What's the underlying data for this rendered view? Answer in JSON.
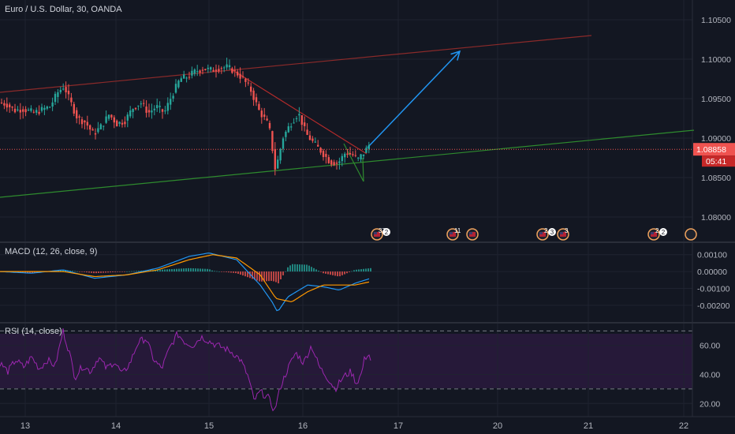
{
  "chart_data": {
    "type": "line",
    "symbol_header": "Euro / U.S. Dollar, 30, OANDA",
    "x_tick_labels": [
      "13",
      "14",
      "15",
      "16",
      "17",
      "20",
      "21",
      "22"
    ],
    "price_panel": {
      "y_tick_labels": [
        "1.10500",
        "1.10000",
        "1.09500",
        "1.09000",
        "1.08500",
        "1.08000"
      ],
      "y_ticks": [
        1.105,
        1.1,
        1.095,
        1.09,
        1.085,
        1.08
      ],
      "ylim": [
        1.0775,
        1.1075
      ],
      "last_price": 1.08858,
      "last_price_label": "1.08858",
      "countdown_label": "05:41",
      "candle_colors": {
        "up": "#26a69a",
        "down": "#ef5350"
      },
      "price_path": [
        [
          0,
          1.0945
        ],
        [
          10,
          1.0943
        ],
        [
          20,
          1.0935
        ],
        [
          30,
          1.0937
        ],
        [
          45,
          1.0932
        ],
        [
          55,
          1.0936
        ],
        [
          65,
          1.094
        ],
        [
          75,
          1.0958
        ],
        [
          83,
          1.0966
        ],
        [
          90,
          1.0948
        ],
        [
          100,
          1.0925
        ],
        [
          110,
          1.092
        ],
        [
          120,
          1.0905
        ],
        [
          130,
          1.0915
        ],
        [
          140,
          1.093
        ],
        [
          150,
          1.0918
        ],
        [
          160,
          1.0922
        ],
        [
          170,
          1.0938
        ],
        [
          180,
          1.0945
        ],
        [
          190,
          1.0932
        ],
        [
          200,
          1.094
        ],
        [
          210,
          1.0932
        ],
        [
          220,
          1.0955
        ],
        [
          230,
          1.0975
        ],
        [
          240,
          1.0978
        ],
        [
          250,
          1.0985
        ],
        [
          260,
          1.0988
        ],
        [
          270,
          1.0986
        ],
        [
          280,
          1.0989
        ],
        [
          290,
          1.099
        ],
        [
          300,
          1.0984
        ],
        [
          310,
          1.0975
        ],
        [
          320,
          1.096
        ],
        [
          330,
          1.0935
        ],
        [
          340,
          1.092
        ],
        [
          345,
          1.0905
        ],
        [
          350,
          1.086
        ],
        [
          355,
          1.0875
        ],
        [
          360,
          1.09
        ],
        [
          370,
          1.0918
        ],
        [
          380,
          1.0932
        ],
        [
          390,
          1.0905
        ],
        [
          400,
          1.0893
        ],
        [
          410,
          1.0882
        ],
        [
          420,
          1.087
        ],
        [
          430,
          1.0868
        ],
        [
          440,
          1.0882
        ],
        [
          450,
          1.0878
        ],
        [
          455,
          1.0872
        ],
        [
          460,
          1.0878
        ],
        [
          465,
          1.0884
        ],
        [
          470,
          1.0892
        ]
      ]
    },
    "macd_panel": {
      "title": "MACD (12, 26, close, 9)",
      "y_tick_labels": [
        "0.00100",
        "0.00000",
        "-0.00100",
        "-0.00200"
      ],
      "y_ticks": [
        0.001,
        0.0,
        -0.001,
        -0.002
      ],
      "ylim": [
        -0.0028,
        0.0015
      ],
      "series": [
        {
          "name": "MACD",
          "color": "#2196f3",
          "points": [
            [
              0,
              0.0
            ],
            [
              40,
              -0.0001
            ],
            [
              80,
              0.0001
            ],
            [
              120,
              -0.0004
            ],
            [
              160,
              -0.0002
            ],
            [
              200,
              0.0002
            ],
            [
              240,
              0.0009
            ],
            [
              265,
              0.0011
            ],
            [
              300,
              0.0007
            ],
            [
              330,
              -0.0008
            ],
            [
              345,
              -0.0018
            ],
            [
              352,
              -0.0024
            ],
            [
              365,
              -0.0015
            ],
            [
              390,
              -0.0008
            ],
            [
              410,
              -0.0009
            ],
            [
              430,
              -0.0011
            ],
            [
              450,
              -0.0007
            ],
            [
              470,
              -0.0004
            ]
          ]
        },
        {
          "name": "Signal",
          "color": "#ff9800",
          "points": [
            [
              0,
              0.0
            ],
            [
              40,
              0.0
            ],
            [
              80,
              0.0
            ],
            [
              120,
              -0.0003
            ],
            [
              160,
              -0.0002
            ],
            [
              200,
              0.0001
            ],
            [
              240,
              0.0007
            ],
            [
              270,
              0.001
            ],
            [
              300,
              0.0008
            ],
            [
              330,
              -0.0002
            ],
            [
              350,
              -0.0016
            ],
            [
              370,
              -0.0018
            ],
            [
              390,
              -0.0012
            ],
            [
              410,
              -0.0008
            ],
            [
              430,
              -0.0008
            ],
            [
              450,
              -0.0008
            ],
            [
              470,
              -0.0006
            ]
          ]
        }
      ],
      "histogram_colors": {
        "up": "#26a69a",
        "down": "#ef5350"
      }
    },
    "rsi_panel": {
      "title": "RSI (14, close)",
      "y_tick_labels": [
        "60.00",
        "40.00",
        "20.00"
      ],
      "y_ticks": [
        60,
        40,
        20
      ],
      "ylim": [
        12,
        74
      ],
      "bands": [
        70,
        30
      ],
      "series": [
        {
          "name": "RSI",
          "color": "#9c27b0",
          "points": [
            [
              0,
              48
            ],
            [
              10,
              42
            ],
            [
              20,
              50
            ],
            [
              30,
              45
            ],
            [
              40,
              52
            ],
            [
              50,
              44
            ],
            [
              60,
              50
            ],
            [
              70,
              46
            ],
            [
              80,
              70
            ],
            [
              88,
              55
            ],
            [
              95,
              38
            ],
            [
              105,
              46
            ],
            [
              115,
              42
            ],
            [
              125,
              52
            ],
            [
              135,
              44
            ],
            [
              145,
              49
            ],
            [
              155,
              40
            ],
            [
              165,
              48
            ],
            [
              175,
              62
            ],
            [
              185,
              65
            ],
            [
              195,
              50
            ],
            [
              205,
              44
            ],
            [
              215,
              58
            ],
            [
              225,
              68
            ],
            [
              235,
              62
            ],
            [
              245,
              60
            ],
            [
              255,
              66
            ],
            [
              265,
              63
            ],
            [
              275,
              60
            ],
            [
              285,
              58
            ],
            [
              295,
              55
            ],
            [
              305,
              50
            ],
            [
              315,
              38
            ],
            [
              322,
              22
            ],
            [
              330,
              28
            ],
            [
              340,
              24
            ],
            [
              348,
              15
            ],
            [
              356,
              32
            ],
            [
              365,
              44
            ],
            [
              375,
              55
            ],
            [
              385,
              48
            ],
            [
              395,
              60
            ],
            [
              405,
              45
            ],
            [
              415,
              38
            ],
            [
              425,
              30
            ],
            [
              435,
              38
            ],
            [
              445,
              42
            ],
            [
              452,
              34
            ],
            [
              458,
              40
            ],
            [
              462,
              50
            ],
            [
              467,
              55
            ],
            [
              470,
              50
            ]
          ]
        }
      ]
    },
    "drawings": [
      {
        "name": "upper-channel-line",
        "color": "#8b2a2a",
        "from": [
          0,
          1.0958
        ],
        "to": [
          750,
          1.103
        ]
      },
      {
        "name": "descending-trendline",
        "color": "#b22b2b",
        "from": [
          292,
          1.0988
        ],
        "to": [
          465,
          1.088
        ]
      },
      {
        "name": "green-support-line",
        "color": "#2e8b2e",
        "from": [
          0,
          1.0825
        ],
        "to": [
          880,
          1.091
        ]
      },
      {
        "name": "green-wedge-left",
        "color": "#2e8b2e",
        "from": [
          436,
          1.0893
        ],
        "to": [
          461,
          1.0845
        ]
      },
      {
        "name": "green-wedge-right",
        "color": "#2e8b2e",
        "from": [
          461,
          1.0845
        ],
        "to": [
          460,
          1.0875
        ]
      },
      {
        "name": "projection-arrow",
        "color": "#2196f3",
        "from": [
          466,
          1.0888
        ],
        "to": [
          583,
          1.101
        ]
      }
    ],
    "event_markers": [
      {
        "label": "37",
        "badge": "2"
      },
      {
        "label": "11"
      },
      {
        "label": ""
      },
      {
        "label": "2",
        "badge": "3"
      },
      {
        "label": "3"
      },
      {
        "label": "2",
        "badge": "2"
      }
    ]
  }
}
